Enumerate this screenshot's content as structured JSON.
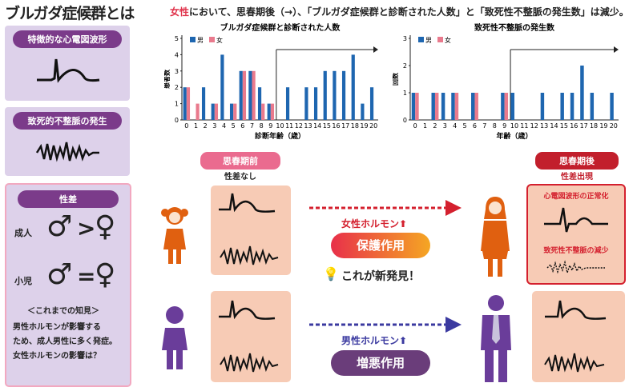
{
  "header": {
    "title": "ブルガダ症候群とは",
    "headline_red": "女性",
    "headline_rest": "において、思春期後（→）、「ブルガダ症候群と診断された人数」と「致死性不整脈の発生数」は減少。"
  },
  "left": {
    "box1_label": "特徴的な心電図波形",
    "box2_label": "致死的不整脈の発生",
    "sex_label": "性差",
    "adult_label": "成人",
    "adult_op": ">",
    "child_label": "小児",
    "child_op": "=",
    "knowledge_title": "＜これまでの知見＞",
    "knowledge_lines": [
      "男性ホルモンが影響する",
      "ため、成人男性に多く発症。",
      "女性ホルモンの影響は？"
    ]
  },
  "center": {
    "pre_label": "思春期前",
    "pre_sub": "性差なし",
    "post_label": "思春期後",
    "post_sub": "性差出現",
    "female_hormone": "女性ホルモン⬆",
    "protect": "保護作用",
    "discovery": "これが新発見！",
    "male_hormone": "男性ホルモン⬆",
    "worsen": "増悪作用",
    "ecg_normalized": "心電図波形の正常化",
    "arrhythmia_reduced": "致死性不整脈の減少"
  },
  "chart_data": [
    {
      "type": "bar",
      "title": "ブルガダ症候群と診断された人数",
      "ylabel": "患者数",
      "xlabel": "診断年齢（歳）",
      "ylim": [
        0,
        5
      ],
      "legend": [
        "男",
        "女"
      ],
      "colors": {
        "male": "#1e66b0",
        "female": "#e97a8d"
      },
      "categories": [
        "0",
        "1",
        "2",
        "3",
        "4",
        "5",
        "6",
        "7",
        "8",
        "9",
        "10",
        "11",
        "12",
        "13",
        "14",
        "15",
        "16",
        "17",
        "18",
        "19",
        "20"
      ],
      "series": [
        {
          "name": "男",
          "values": [
            2,
            0,
            2,
            1,
            4,
            1,
            3,
            3,
            2,
            1,
            0,
            2,
            0,
            2,
            2,
            3,
            3,
            3,
            4,
            1,
            2
          ]
        },
        {
          "name": "女",
          "values": [
            2,
            1,
            0,
            1,
            0,
            1,
            3,
            3,
            1,
            1,
            0,
            0,
            0,
            0,
            0,
            0,
            0,
            0,
            0,
            0,
            0
          ]
        }
      ]
    },
    {
      "type": "bar",
      "title": "致死性不整脈の発生数",
      "ylabel": "回数",
      "xlabel": "年齢（歳）",
      "ylim": [
        0,
        3
      ],
      "legend": [
        "男",
        "女"
      ],
      "colors": {
        "male": "#1e66b0",
        "female": "#e97a8d"
      },
      "categories": [
        "0",
        "1",
        "2",
        "3",
        "4",
        "5",
        "6",
        "7",
        "8",
        "9",
        "10",
        "11",
        "12",
        "13",
        "14",
        "15",
        "16",
        "17",
        "18",
        "19",
        "20"
      ],
      "series": [
        {
          "name": "男",
          "values": [
            1,
            0,
            1,
            1,
            1,
            0,
            1,
            0,
            0,
            1,
            1,
            0,
            0,
            1,
            0,
            1,
            1,
            2,
            1,
            0,
            1
          ]
        },
        {
          "name": "女",
          "values": [
            1,
            0,
            1,
            0,
            1,
            0,
            1,
            0,
            0,
            1,
            0,
            0,
            0,
            0,
            0,
            0,
            0,
            0,
            0,
            0,
            0
          ]
        }
      ]
    }
  ]
}
